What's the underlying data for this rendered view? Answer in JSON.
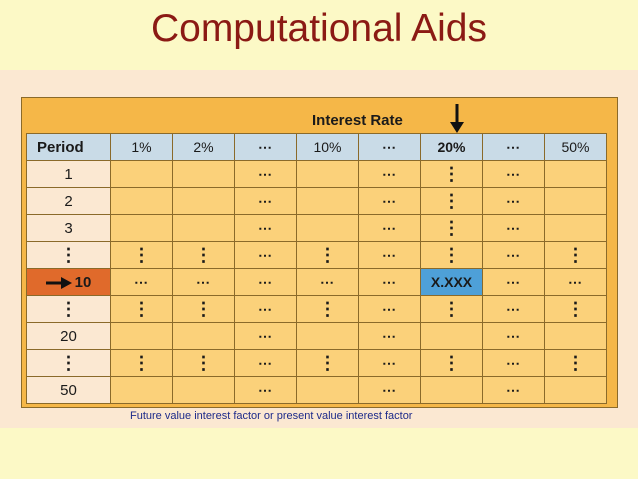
{
  "title": "Computational Aids",
  "table": {
    "interest_rate_label": "Interest Rate",
    "period_header": "Period",
    "rate_headers": [
      "1%",
      "2%",
      "⋯",
      "10%",
      "⋯",
      "20%",
      "⋯",
      "50%"
    ],
    "highlight_rate": "20%",
    "rows": [
      {
        "period": "1",
        "cells": [
          "",
          "",
          "⋯",
          "",
          "⋯",
          "⋮",
          "⋯",
          ""
        ]
      },
      {
        "period": "2",
        "cells": [
          "",
          "",
          "⋯",
          "",
          "⋯",
          "⋮",
          "⋯",
          ""
        ]
      },
      {
        "period": "3",
        "cells": [
          "",
          "",
          "⋯",
          "",
          "⋯",
          "⋮",
          "⋯",
          ""
        ]
      },
      {
        "period": "⋮",
        "cells": [
          "⋮",
          "⋮",
          "⋯",
          "⋮",
          "⋯",
          "⋮",
          "⋯",
          "⋮"
        ]
      },
      {
        "period": "10",
        "cells": [
          "⋯",
          "⋯",
          "⋯",
          "⋯",
          "⋯",
          "X.XXX",
          "⋯",
          "⋯"
        ],
        "highlight": true
      },
      {
        "period": "⋮",
        "cells": [
          "⋮",
          "⋮",
          "⋯",
          "⋮",
          "⋯",
          "⋮",
          "⋯",
          "⋮"
        ]
      },
      {
        "period": "20",
        "cells": [
          "",
          "",
          "⋯",
          "",
          "⋯",
          "",
          "⋯",
          ""
        ]
      },
      {
        "period": "⋮",
        "cells": [
          "⋮",
          "⋮",
          "⋯",
          "⋮",
          "⋯",
          "⋮",
          "⋯",
          "⋮"
        ]
      },
      {
        "period": "50",
        "cells": [
          "",
          "",
          "⋯",
          "",
          "⋯",
          "",
          "⋯",
          ""
        ]
      }
    ]
  },
  "caption": "Future value interest factor or present value interest factor",
  "colors": {
    "title": "#8b1a14",
    "highlight": "#e06a2b",
    "answer": "#4ea0d8",
    "header": "#c9dbe7",
    "cell": "#fbd17a"
  }
}
